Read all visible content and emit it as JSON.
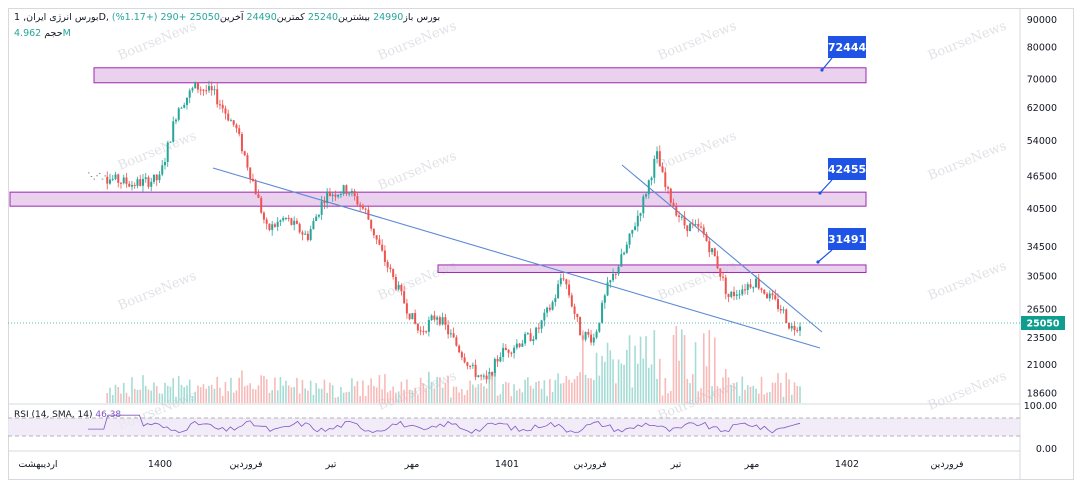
{
  "legend": {
    "symbol": "بورس انرژی ایران, 1D, بورس",
    "open_label": "باز",
    "open": "24990",
    "high_label": "بیشترین",
    "high": "25240",
    "low_label": "کمترین",
    "low": "24490",
    "close_label": "آخرین",
    "close": "25050",
    "change": "+290 (+1.17%)",
    "volume_label": "حجم",
    "volume": "4.962M"
  },
  "rsi_label": "RSI (14, SMA, 14)",
  "rsi_value": "46.38",
  "watermark": "BourseNews",
  "colors": {
    "up": "#26a69a",
    "down": "#ef5350",
    "zone_fill": "#e1bee7",
    "zone_border": "#9c27b0",
    "trendline": "#5b8ad6",
    "label_bg": "#1e53e5",
    "rsi_line": "#7e57c2",
    "rsi_band": "#ede7f6"
  },
  "chart_data": {
    "type": "candlestick",
    "scale": "log",
    "y_ticks": [
      90000,
      80000,
      70000,
      62000,
      54000,
      46500,
      40500,
      34500,
      30500,
      26500,
      23500,
      21000,
      18600
    ],
    "x_ticks": [
      "اردیبهشت",
      "1400",
      "فروردین",
      "تیر",
      "مهر",
      "1401",
      "فروردین",
      "تیر",
      "مهر",
      "1402",
      "فروردین"
    ],
    "last_price": 25050,
    "price_path": [
      [
        0,
        47000
      ],
      [
        0.05,
        45000
      ],
      [
        0.08,
        46000
      ],
      [
        0.1,
        62000
      ],
      [
        0.12,
        68000
      ],
      [
        0.14,
        66000
      ],
      [
        0.165,
        57000
      ],
      [
        0.185,
        45000
      ],
      [
        0.2,
        37000
      ],
      [
        0.22,
        39000
      ],
      [
        0.245,
        36000
      ],
      [
        0.265,
        43000
      ],
      [
        0.29,
        44000
      ],
      [
        0.31,
        40000
      ],
      [
        0.33,
        33000
      ],
      [
        0.35,
        28000
      ],
      [
        0.37,
        24000
      ],
      [
        0.39,
        26000
      ],
      [
        0.41,
        23000
      ],
      [
        0.43,
        20500
      ],
      [
        0.445,
        19500
      ],
      [
        0.46,
        22000
      ],
      [
        0.48,
        23000
      ],
      [
        0.5,
        24000
      ],
      [
        0.52,
        27500
      ],
      [
        0.53,
        31000
      ],
      [
        0.55,
        24000
      ],
      [
        0.565,
        23500
      ],
      [
        0.58,
        29000
      ],
      [
        0.6,
        34000
      ],
      [
        0.62,
        42000
      ],
      [
        0.635,
        51000
      ],
      [
        0.645,
        44000
      ],
      [
        0.665,
        38000
      ],
      [
        0.685,
        37000
      ],
      [
        0.7,
        33000
      ],
      [
        0.715,
        28000
      ],
      [
        0.73,
        29000
      ],
      [
        0.745,
        30000
      ],
      [
        0.76,
        28000
      ],
      [
        0.775,
        26500
      ],
      [
        0.785,
        24500
      ],
      [
        0.795,
        25050
      ]
    ],
    "zones": [
      {
        "label": "72444",
        "low": 69000,
        "high": 73500
      },
      {
        "label": "42455",
        "low": 41000,
        "high": 43500
      },
      {
        "label": "31491",
        "low": 31000,
        "high": 32000
      }
    ],
    "rsi_ticks": [
      "100.00",
      "0.00"
    ],
    "rsi_value": 46.38
  }
}
